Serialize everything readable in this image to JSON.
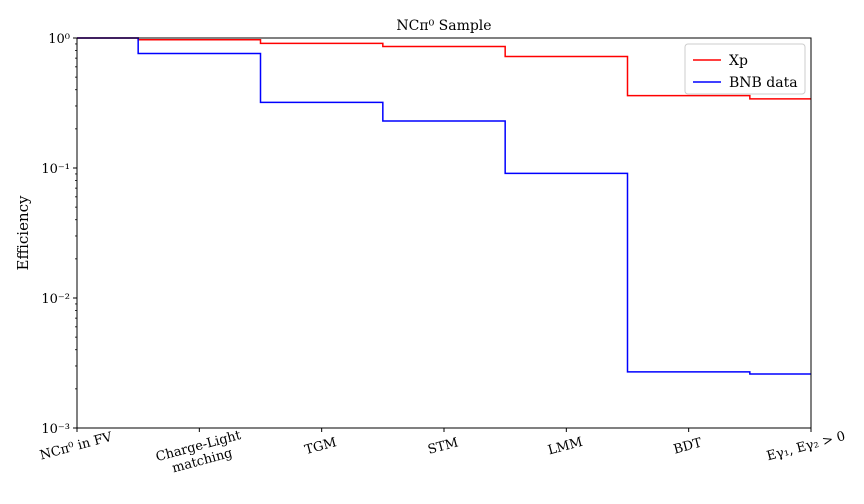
{
  "chart_data": {
    "type": "line",
    "drawstyle": "steps-mid",
    "title": "NCπ⁰ Sample",
    "xlabel": "",
    "ylabel": "Efficiency",
    "yscale": "log",
    "ylim": [
      0.001,
      1
    ],
    "yticks": [
      {
        "value": 0.001,
        "label": "10⁻³"
      },
      {
        "value": 0.01,
        "label": "10⁻²"
      },
      {
        "value": 0.1,
        "label": "10⁻¹"
      },
      {
        "value": 1,
        "label": "10⁰"
      }
    ],
    "categories": [
      "NCπ⁰ in FV",
      "Charge-Light\nmatching",
      "TGM",
      "STM",
      "LMM",
      "BDT",
      "Eγ₁, Eγ₂ > 0"
    ],
    "series": [
      {
        "name": "Xp",
        "color": "#ff0000",
        "values": [
          1.0,
          0.97,
          0.91,
          0.86,
          0.72,
          0.36,
          0.34
        ]
      },
      {
        "name": "BNB data",
        "color": "#0000ff",
        "values": [
          1.0,
          0.76,
          0.32,
          0.23,
          0.091,
          0.0027,
          0.0026
        ]
      }
    ],
    "legend_position": "top-right",
    "grid": false
  }
}
